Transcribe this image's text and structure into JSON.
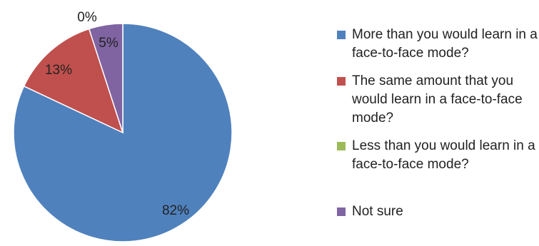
{
  "chart_data": {
    "type": "pie",
    "title": "",
    "slices": [
      {
        "label": "More than you would learn in a face-to-face mode?",
        "value": 82,
        "display": "82%",
        "color": "#4f81bd"
      },
      {
        "label": "The same amount that you would learn in a face-to-face mode?",
        "value": 13,
        "display": "13%",
        "color": "#c0504d"
      },
      {
        "label": "Less than you would learn in a face-to-face mode?",
        "value": 0,
        "display": "0%",
        "color": "#9bbb59"
      },
      {
        "label": "Not sure",
        "value": 5,
        "display": "5%",
        "color": "#8064a2"
      }
    ],
    "legend": {
      "position": "right"
    }
  },
  "legend": {
    "items": [
      "More than you would learn in a face-to-face mode?",
      "The same amount that you would learn in a face-to-face mode?",
      "Less than you would learn in a face-to-face mode?",
      "Not sure"
    ]
  }
}
